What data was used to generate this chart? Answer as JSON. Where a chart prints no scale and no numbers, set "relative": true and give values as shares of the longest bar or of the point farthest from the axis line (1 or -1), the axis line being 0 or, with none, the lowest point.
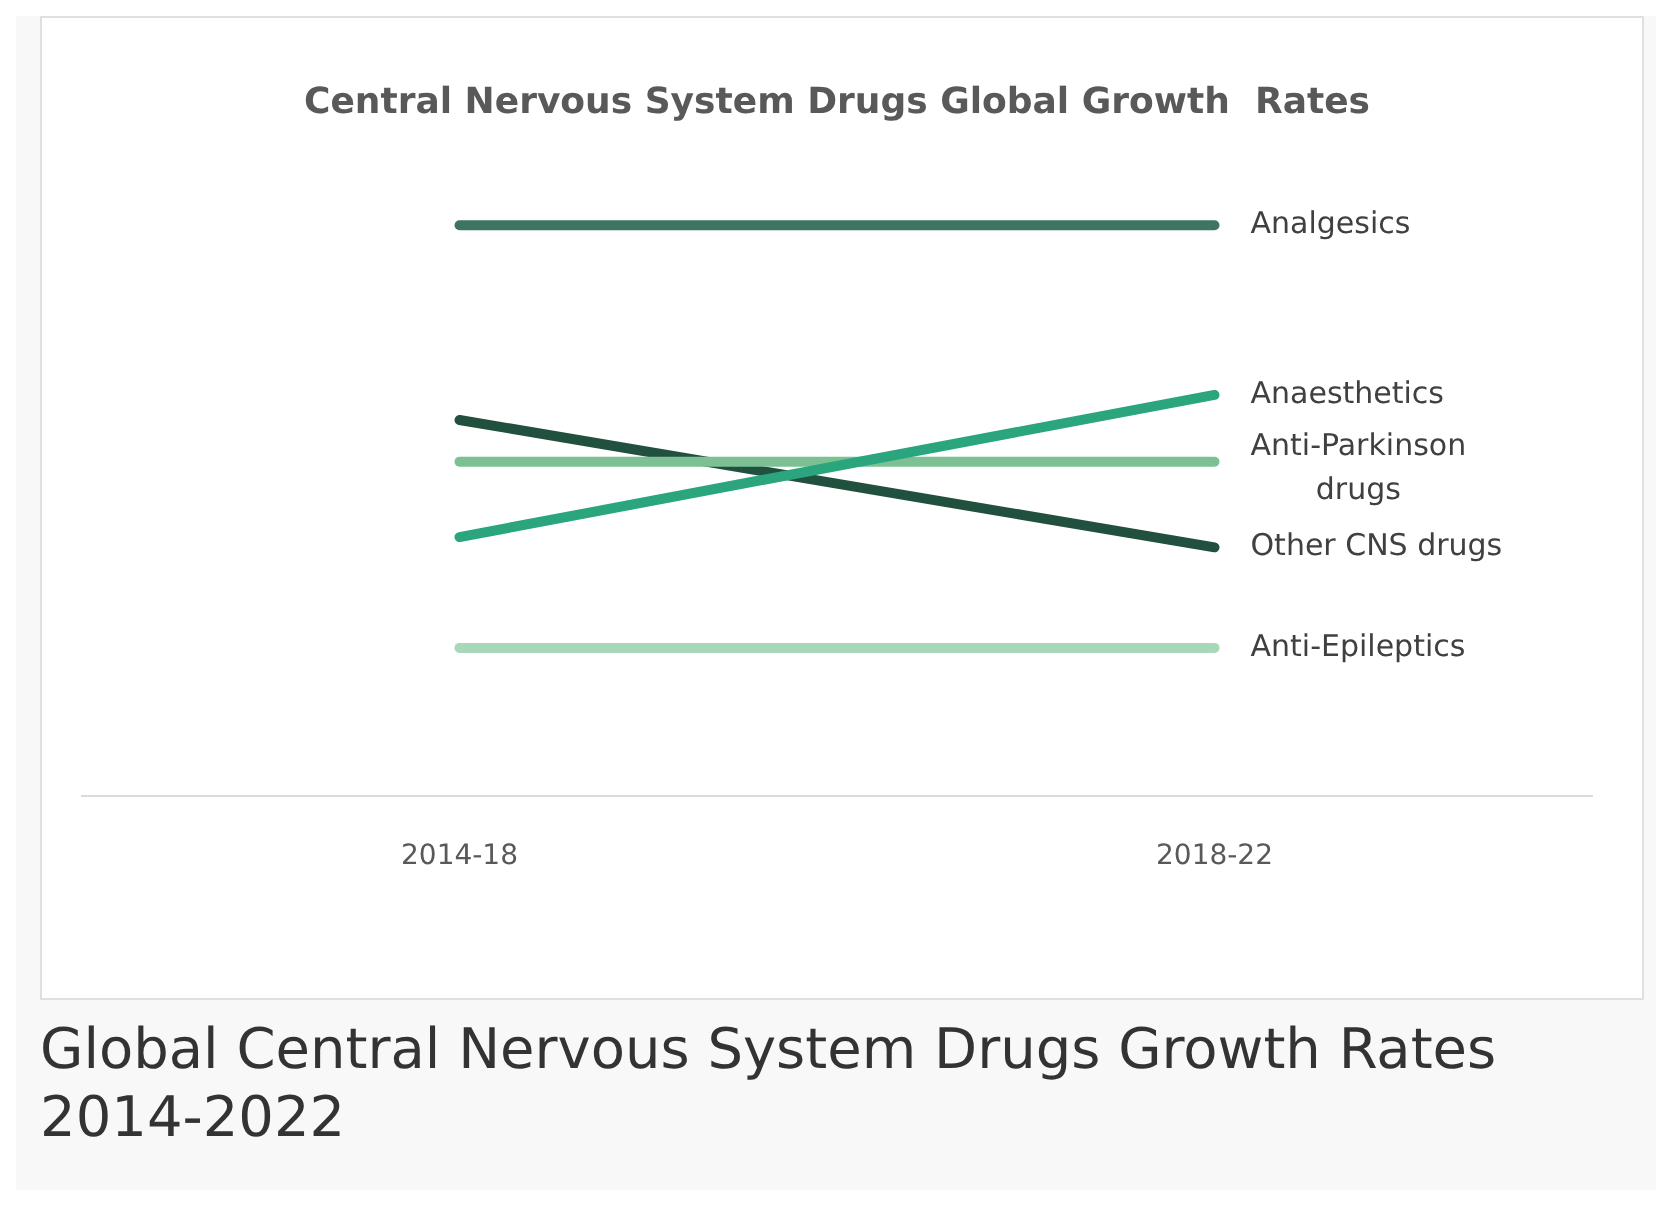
{
  "chart_data": {
    "type": "line",
    "title": "Central Nervous System Drugs Global Growth  Rates",
    "categories": [
      "2014-18",
      "2018-22"
    ],
    "relative": true,
    "grid": false,
    "legend": false,
    "marker": "none",
    "line_style": "solid",
    "series": [
      {
        "name": "Analgesics",
        "color": "#3d7560",
        "values": [
          1,
          1
        ]
      },
      {
        "name": "Anaesthetics",
        "color": "#2aa57e",
        "values": [
          0.454,
          0.703
        ]
      },
      {
        "name": "Anti-Parkinson drugs",
        "color": "#7cc093",
        "values": [
          0.586,
          0.586
        ]
      },
      {
        "name": "Other CNS drugs",
        "color": "#22503f",
        "values": [
          0.659,
          0.436
        ]
      },
      {
        "name": "Anti-Epileptics",
        "color": "#a8d8b7",
        "values": [
          0.26,
          0.26
        ]
      }
    ],
    "annotations": [
      "Global Central Nervous System Drugs Growth Rates 2014-2022"
    ]
  }
}
